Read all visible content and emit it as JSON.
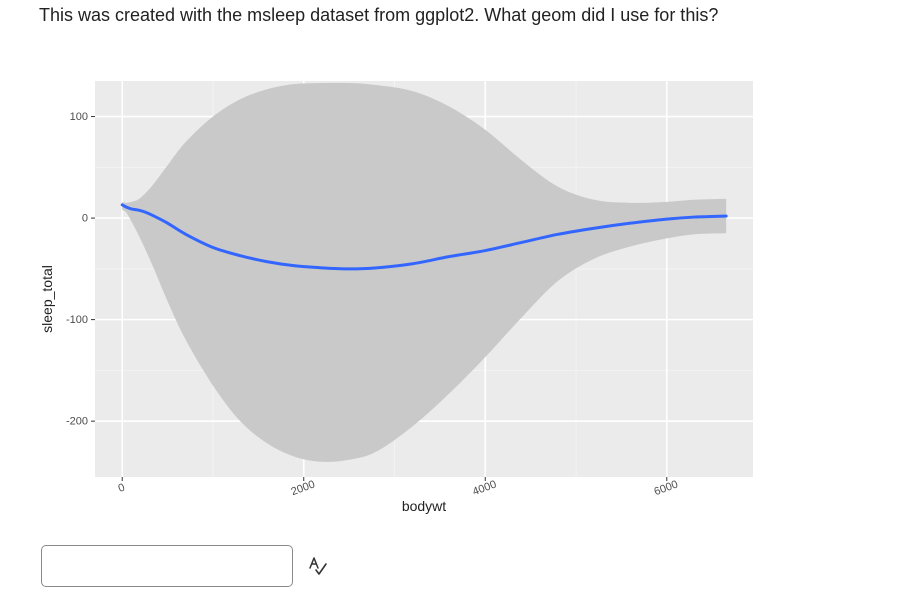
{
  "question": {
    "text": "This was created with the msleep dataset from ggplot2.  What geom did I use for this?"
  },
  "answer": {
    "value": "",
    "placeholder": ""
  },
  "icons": {
    "spellcheck": "spellcheck-icon"
  },
  "colors": {
    "panel_background": "#EBEBEB",
    "ribbon": "#C9C9C9",
    "smooth_line": "#3366FF",
    "grid_major": "#FFFFFF",
    "grid_minor": "#F5F5F5"
  },
  "chart_data": {
    "type": "line",
    "geom": "smooth with confidence ribbon",
    "title": "",
    "xlabel": "bodywt",
    "ylabel": "sleep_total",
    "xlim": [
      -300,
      6950
    ],
    "ylim": [
      -255,
      135
    ],
    "x_ticks": [
      0,
      2000,
      4000,
      6000
    ],
    "x_tick_labels": [
      "0",
      "2000",
      "4000",
      "6000"
    ],
    "y_ticks": [
      100,
      0,
      -100,
      -200
    ],
    "y_tick_labels": [
      "100",
      "0",
      "-100",
      "-200"
    ],
    "x_minor_ticks": [
      1000,
      3000,
      5000
    ],
    "y_minor_ticks": [
      50,
      -50,
      -150
    ],
    "grid": true,
    "legend": "none",
    "x": [
      0,
      40,
      100,
      170,
      250,
      350,
      500,
      700,
      1000,
      1300,
      1600,
      1900,
      2200,
      2500,
      2800,
      3200,
      3600,
      4000,
      4400,
      4800,
      5200,
      5600,
      6000,
      6300,
      6654
    ],
    "y": [
      13,
      11,
      9,
      8,
      6,
      2,
      -5,
      -16,
      -29,
      -37,
      -43,
      -47,
      -49,
      -50,
      -49,
      -45,
      -38,
      -32,
      -24,
      -16,
      -10,
      -5,
      -1,
      1,
      2
    ],
    "ymin": [
      8,
      6,
      -3,
      -15,
      -30,
      -50,
      -82,
      -120,
      -165,
      -200,
      -222,
      -235,
      -240,
      -238,
      -230,
      -205,
      -173,
      -137,
      -98,
      -62,
      -40,
      -28,
      -20,
      -16,
      -15
    ],
    "ymax": [
      16,
      15,
      16,
      18,
      24,
      34,
      52,
      75,
      100,
      117,
      127,
      132,
      133,
      133,
      131,
      125,
      110,
      87,
      57,
      31,
      18,
      15,
      16,
      18,
      19
    ]
  }
}
